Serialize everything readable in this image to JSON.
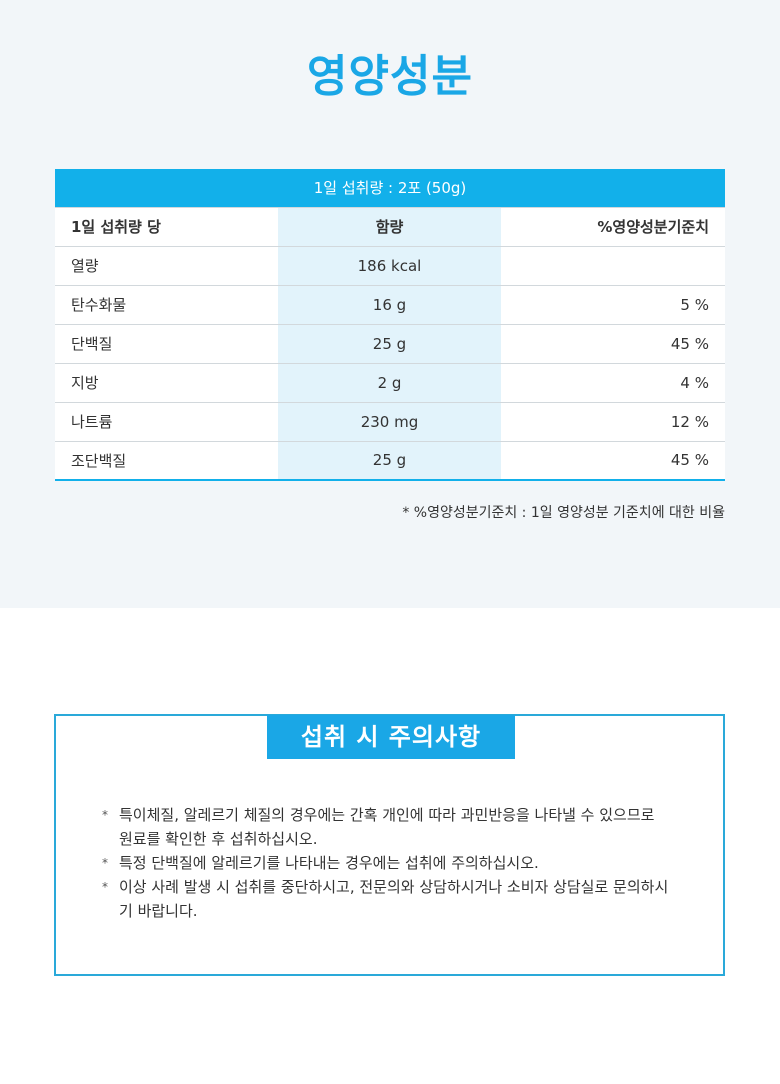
{
  "title": "영양성분",
  "table": {
    "caption": "1일 섭취량 : 2포 (50g)",
    "headers": [
      "1일 섭취량 당",
      "함량",
      "%영양성분기준치"
    ],
    "rows": [
      {
        "name": "열량",
        "amount": "186 kcal",
        "dv": ""
      },
      {
        "name": "탄수화물",
        "amount": "16 g",
        "dv": "5 %"
      },
      {
        "name": "단백질",
        "amount": "25 g",
        "dv": "45 %"
      },
      {
        "name": "지방",
        "amount": "2 g",
        "dv": "4 %"
      },
      {
        "name": "나트륨",
        "amount": "230 mg",
        "dv": "12 %"
      },
      {
        "name": "조단백질",
        "amount": "25 g",
        "dv": "45 %"
      }
    ]
  },
  "footnote": "* %영양성분기준치 : 1일 영양성분 기준치에 대한 비율",
  "caution": {
    "title": "섭취 시 주의사항",
    "bullet": "*",
    "items": [
      "특이체질, 알레르기 체질의 경우에는 간혹 개인에 따라 과민반응을 나타낼 수 있으므로 원료를 확인한 후 섭취하십시오.",
      "특정 단백질에 알레르기를 나타내는 경우에는 섭취에 주의하십시오.",
      "이상 사례 발생 시 섭취를 중단하시고, 전문의와 상담하시거나 소비자 상담실로 문의하시기 바랍니다."
    ]
  },
  "colors": {
    "accent": "#1aa7e6",
    "table_header": "#12b0ea",
    "amount_column": "#e2f3fb",
    "background_top": "#f2f6f9"
  }
}
